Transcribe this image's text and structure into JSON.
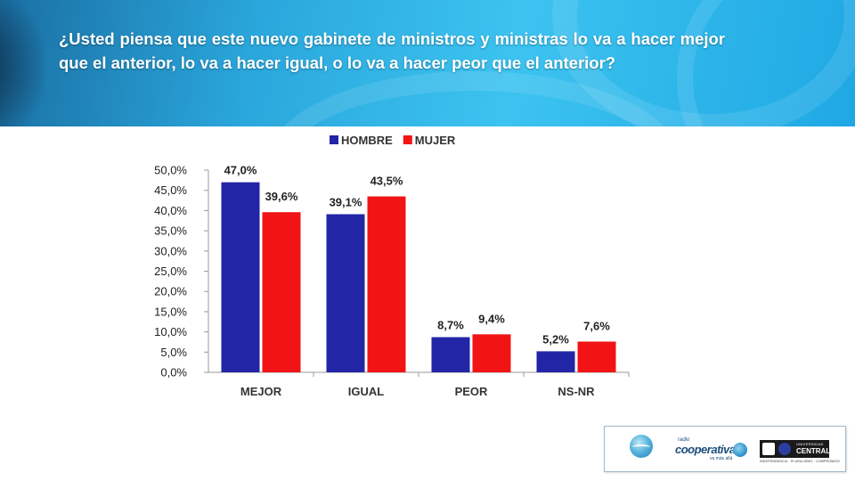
{
  "header": {
    "question": "¿Usted piensa que este nuevo gabinete de ministros y ministras lo va a hacer mejor que el anterior, lo va a hacer igual, o lo va a hacer peor que el anterior?"
  },
  "chart_data": {
    "type": "bar",
    "title": "",
    "xlabel": "",
    "ylabel": "",
    "categories": [
      "MEJOR",
      "IGUAL",
      "PEOR",
      "NS-NR"
    ],
    "series": [
      {
        "name": "HOMBRE",
        "color": "#2125a6",
        "values": [
          47.0,
          39.1,
          8.7,
          5.2
        ],
        "labels": [
          "47,0%",
          "39,1%",
          "8,7%",
          "5,2%"
        ]
      },
      {
        "name": "MUJER",
        "color": "#f21414",
        "values": [
          39.6,
          43.5,
          9.4,
          7.6
        ],
        "labels": [
          "39,6%",
          "43,5%",
          "9,4%",
          "7,6%"
        ]
      }
    ],
    "ylim": [
      0,
      50
    ],
    "yticks": [
      0,
      5,
      10,
      15,
      20,
      25,
      30,
      35,
      40,
      45,
      50
    ],
    "ytick_labels": [
      "0,0%",
      "5,0%",
      "10,0%",
      "15,0%",
      "20,0%",
      "25,0%",
      "30,0%",
      "35,0%",
      "40,0%",
      "45,0%",
      "50,0%"
    ],
    "grid": false,
    "legend_position": "top"
  },
  "logos": {
    "cooperativa_small": "radio",
    "cooperativa_name": "cooperativa",
    "cooperativa_tagline": "va más allá",
    "university_small": "UNIVERSIDAD",
    "university_name": "CENTRAL",
    "university_tagline": "INDEPENDENCIA · PLURALISMO · COMPROMISO"
  }
}
